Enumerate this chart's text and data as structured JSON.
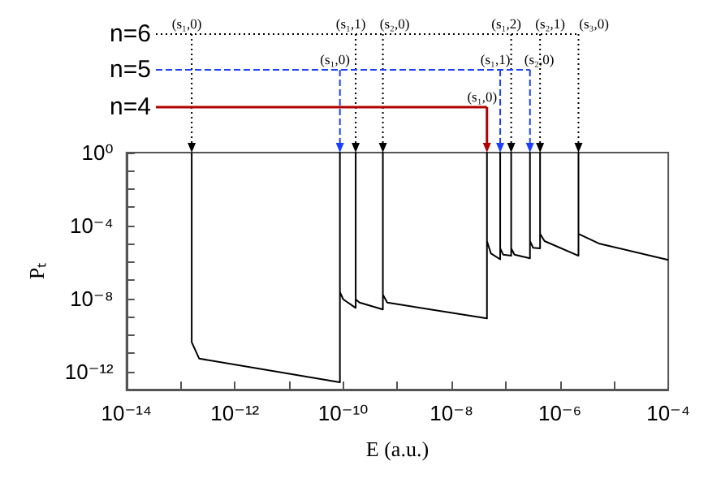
{
  "chart_data": {
    "type": "line",
    "xlabel": "E (a.u.)",
    "ylabel": "Pₜ",
    "log": "xy",
    "grid": false,
    "marker": "none",
    "xlim": [
      1e-14,
      0.0001
    ],
    "xticks": [
      {
        "value": 1e-14,
        "label": "10⁻¹⁴"
      },
      {
        "value": 1e-13,
        "label": null
      },
      {
        "value": 1e-12,
        "label": "10⁻¹²"
      },
      {
        "value": 1e-11,
        "label": null
      },
      {
        "value": 1e-10,
        "label": "10⁻¹⁰"
      },
      {
        "value": 1e-09,
        "label": null
      },
      {
        "value": 1e-08,
        "label": "10⁻⁸"
      },
      {
        "value": 1e-07,
        "label": null
      },
      {
        "value": 1e-06,
        "label": "10⁻⁶"
      },
      {
        "value": 1e-05,
        "label": null
      },
      {
        "value": 0.0001,
        "label": "10⁻⁴"
      }
    ],
    "ylim": [
      1e-13,
      1
    ],
    "yticks": [
      {
        "value": 1,
        "label": "10⁰"
      },
      {
        "value": 0.1,
        "label": null
      },
      {
        "value": 0.01,
        "label": null
      },
      {
        "value": 0.001,
        "label": null
      },
      {
        "value": 0.0001,
        "label": "10⁻⁴"
      },
      {
        "value": 1e-05,
        "label": null
      },
      {
        "value": 1e-06,
        "label": null
      },
      {
        "value": 1e-07,
        "label": null
      },
      {
        "value": 1e-08,
        "label": "10⁻⁸"
      },
      {
        "value": 1e-09,
        "label": null
      },
      {
        "value": 1e-10,
        "label": null
      },
      {
        "value": 1e-11,
        "label": null
      },
      {
        "value": 1e-12,
        "label": "10⁻¹²"
      },
      {
        "value": 1e-13,
        "label": null
      }
    ],
    "series": [
      {
        "color": "#000000",
        "x": [
          1.6e-13,
          1.6e-13,
          2.2e-13,
          8.7e-11,
          8.7e-11,
          8.7e-11,
          1e-10,
          1.7e-10,
          1.7e-10,
          1.7e-10,
          2e-10,
          5.4e-10,
          5.4e-10,
          5.4e-10,
          6.5e-10,
          4.5e-08,
          4.5e-08,
          4.5e-08,
          5.3e-08,
          7.9e-08,
          7.9e-08,
          7.9e-08,
          9e-08,
          1.26e-07,
          1.26e-07,
          1.26e-07,
          1.45e-07,
          2.8e-07,
          2.8e-07,
          2.8e-07,
          3.2e-07,
          4.3e-07,
          4.3e-07,
          4.3e-07,
          5.2e-07,
          2.2e-06,
          2.2e-06,
          2.2e-06,
          5.4e-06,
          0.0001
        ],
        "values": [
          1,
          4e-11,
          5e-12,
          2.5e-13,
          1,
          2.2e-08,
          9e-09,
          3e-09,
          1,
          9e-09,
          6e-09,
          2.5e-09,
          1,
          1.6e-08,
          6e-09,
          8e-10,
          1,
          1.4e-05,
          3e-06,
          1.4e-06,
          1,
          5.6e-06,
          2.5e-06,
          2.2e-06,
          1,
          5.6e-06,
          2.5e-06,
          1.6e-06,
          1,
          1.4e-05,
          6e-06,
          5.6e-06,
          1,
          3.5e-05,
          1.4e-05,
          2.2e-06,
          1,
          3.5e-05,
          1e-05,
          1.3e-06
        ]
      }
    ],
    "ref_lines": [
      {
        "axis": "x",
        "value": 1.6e-13,
        "label": "(s₁,0)",
        "color": "#000000",
        "line_style": "dotted"
      },
      {
        "axis": "x",
        "value": 1.7e-10,
        "label": "(s₁,1)",
        "color": "#000000",
        "line_style": "dotted"
      },
      {
        "axis": "x",
        "value": 5.4e-10,
        "label": "(s₂,0)",
        "color": "#000000",
        "line_style": "dotted"
      },
      {
        "axis": "x",
        "value": 1.26e-07,
        "label": "(s₁,2)",
        "color": "#000000",
        "line_style": "dotted"
      },
      {
        "axis": "x",
        "value": 4.3e-07,
        "label": "(s₂,1)",
        "color": "#000000",
        "line_style": "dotted"
      },
      {
        "axis": "x",
        "value": 2.2e-06,
        "label": "(s₃,0)",
        "color": "#000000",
        "line_style": "dotted"
      },
      {
        "axis": "x",
        "value": 8.7e-11,
        "label": "(s₁,0)",
        "color": "#1a3fff",
        "line_style": "dashed"
      },
      {
        "axis": "x",
        "value": 7.9e-08,
        "label": "(s₁,1)",
        "color": "#1a3fff",
        "line_style": "dashed"
      },
      {
        "axis": "x",
        "value": 2.8e-07,
        "label": "(s₂,0)",
        "color": "#1a3fff",
        "line_style": "dashed"
      },
      {
        "axis": "x",
        "value": 4.5e-08,
        "label": "(s₁,0)",
        "color": "#b00000",
        "line_style": "solid"
      }
    ],
    "annotations": [
      "n=6",
      "n=5",
      "n=4"
    ]
  }
}
